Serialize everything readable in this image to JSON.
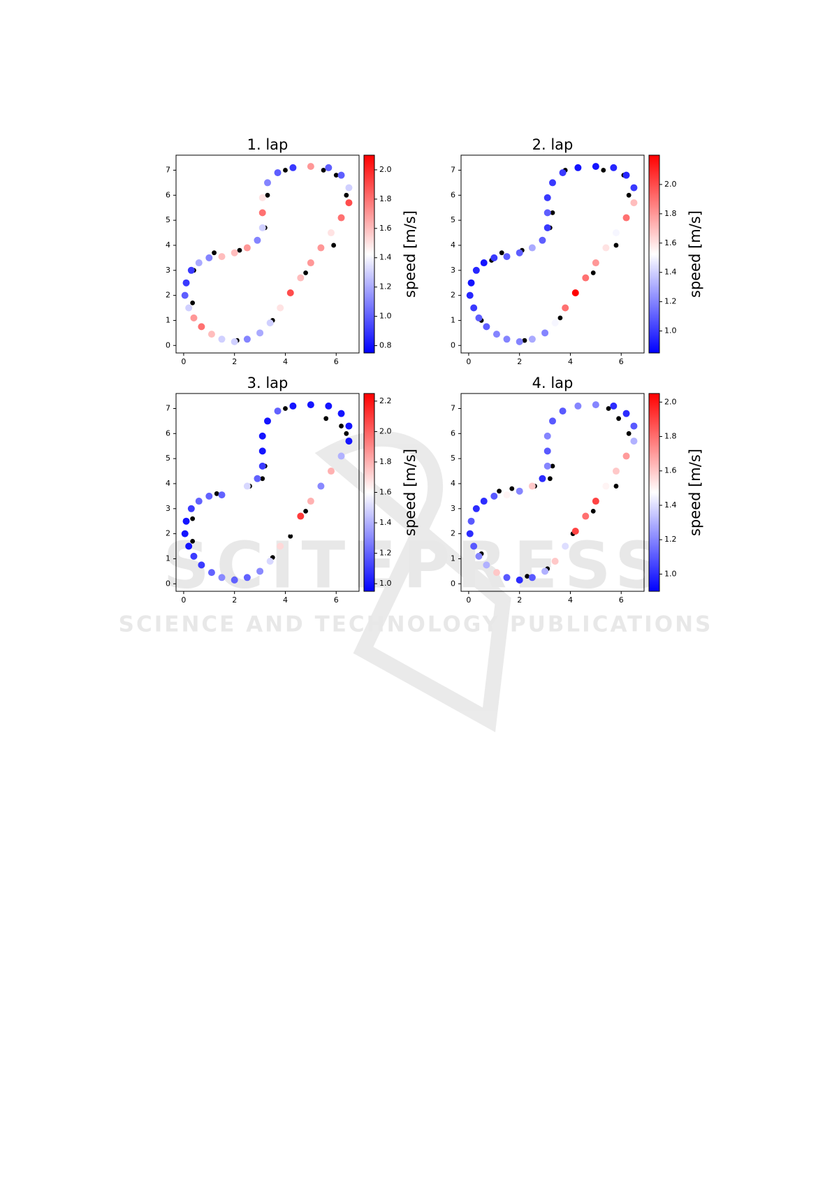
{
  "chart_data": [
    {
      "type": "scatter",
      "title": "1. lap",
      "xlim": [
        -0.3,
        6.9
      ],
      "ylim": [
        -0.3,
        7.6
      ],
      "xticks": [
        0,
        2,
        4,
        6
      ],
      "yticks": [
        0,
        1,
        2,
        3,
        4,
        5,
        6,
        7
      ],
      "colormap": "bwr",
      "clim": [
        0.75,
        2.1
      ],
      "colorbar_label": "speed [m/s]",
      "cticks": [
        0.8,
        {
          "value": 1.0,
          "label": "1.0"
        },
        1.2,
        1.4,
        1.6,
        1.8,
        {
          "value": 2.0,
          "label": "2.0"
        }
      ],
      "series": [
        {
          "color": "#000000",
          "x": [
            2.1,
            3.5,
            4.8,
            5.9,
            6.4,
            6.0,
            5.5,
            4.0,
            3.3,
            3.2,
            2.2,
            1.2,
            0.4,
            0.35
          ],
          "y": [
            0.2,
            1.0,
            2.9,
            4.0,
            6.0,
            6.8,
            7.0,
            7.0,
            6.0,
            4.7,
            3.8,
            3.7,
            3.0,
            1.7
          ]
        },
        {
          "x": [
            2.0,
            2.5,
            3.0,
            3.4,
            3.8,
            4.2,
            4.6,
            5.0,
            5.4,
            5.8,
            6.2,
            6.5,
            6.5,
            6.2,
            5.7,
            5.0,
            4.3,
            3.7,
            3.3,
            3.1,
            3.1,
            3.1,
            2.9,
            2.5,
            2.0,
            1.5,
            1.0,
            0.6,
            0.3,
            0.1,
            0.05,
            0.2,
            0.4,
            0.7,
            1.1,
            1.5
          ],
          "y": [
            0.15,
            0.25,
            0.5,
            0.9,
            1.5,
            2.1,
            2.7,
            3.3,
            3.9,
            4.5,
            5.1,
            5.7,
            6.3,
            6.8,
            7.1,
            7.15,
            7.1,
            6.9,
            6.5,
            5.9,
            5.3,
            4.7,
            4.2,
            3.9,
            3.7,
            3.55,
            3.5,
            3.3,
            3.0,
            2.5,
            2.0,
            1.5,
            1.1,
            0.75,
            0.45,
            0.25
          ],
          "values": [
            1.3,
            1.1,
            1.2,
            1.3,
            1.5,
            1.9,
            1.6,
            1.7,
            1.7,
            1.5,
            1.8,
            1.9,
            1.3,
            1.0,
            1.0,
            1.7,
            0.9,
            1.0,
            1.1,
            1.5,
            1.8,
            1.3,
            1.1,
            1.7,
            1.6,
            1.6,
            1.1,
            1.2,
            0.9,
            0.9,
            1.0,
            1.3,
            1.7,
            1.8,
            1.6,
            1.3
          ]
        }
      ]
    },
    {
      "type": "scatter",
      "title": "2. lap",
      "xlim": [
        -0.3,
        6.9
      ],
      "ylim": [
        -0.3,
        7.6
      ],
      "xticks": [
        0,
        2,
        4,
        6
      ],
      "yticks": [
        0,
        1,
        2,
        3,
        4,
        5,
        6,
        7
      ],
      "colormap": "bwr",
      "clim": [
        0.85,
        2.2
      ],
      "colorbar_label": "speed [m/s]",
      "cticks": [
        {
          "value": 1.0,
          "label": "1.0"
        },
        1.2,
        1.4,
        1.6,
        1.8,
        {
          "value": 2.0,
          "label": "2.0"
        }
      ],
      "series": [
        {
          "color": "#000000",
          "x": [
            2.2,
            3.6,
            4.9,
            5.8,
            6.3,
            6.1,
            5.3,
            3.8,
            3.3,
            3.2,
            2.1,
            1.3,
            0.9,
            0.5
          ],
          "y": [
            0.2,
            1.1,
            2.9,
            4.0,
            6.0,
            6.8,
            7.0,
            7.0,
            5.3,
            4.7,
            3.8,
            3.7,
            3.4,
            1.0
          ]
        },
        {
          "x": [
            2.0,
            2.5,
            3.0,
            3.4,
            3.8,
            4.2,
            4.6,
            5.0,
            5.4,
            5.8,
            6.2,
            6.5,
            6.5,
            6.2,
            5.7,
            5.0,
            4.3,
            3.7,
            3.3,
            3.1,
            3.1,
            3.1,
            2.9,
            2.5,
            2.0,
            1.5,
            1.0,
            0.6,
            0.3,
            0.1,
            0.05,
            0.2,
            0.4,
            0.7,
            1.1,
            1.5
          ],
          "y": [
            0.15,
            0.25,
            0.5,
            0.9,
            1.5,
            2.1,
            2.7,
            3.3,
            3.9,
            4.5,
            5.1,
            5.7,
            6.3,
            6.8,
            7.1,
            7.15,
            7.1,
            6.9,
            6.5,
            5.9,
            5.3,
            4.7,
            4.2,
            3.9,
            3.7,
            3.55,
            3.5,
            3.3,
            3.0,
            2.5,
            2.0,
            1.5,
            1.1,
            0.75,
            0.45,
            0.25
          ],
          "values": [
            1.2,
            1.3,
            1.2,
            1.5,
            1.9,
            2.2,
            1.9,
            1.8,
            1.6,
            1.5,
            1.9,
            1.7,
            1.0,
            0.95,
            0.95,
            0.9,
            0.9,
            1.0,
            1.0,
            1.0,
            1.1,
            1.0,
            1.1,
            1.3,
            1.1,
            1.1,
            1.0,
            0.9,
            0.95,
            0.9,
            0.95,
            1.0,
            1.1,
            1.1,
            1.2,
            1.2
          ]
        }
      ]
    },
    {
      "type": "scatter",
      "title": "3. lap",
      "xlim": [
        -0.3,
        6.9
      ],
      "ylim": [
        -0.3,
        7.6
      ],
      "xticks": [
        0,
        2,
        4,
        6
      ],
      "yticks": [
        0,
        1,
        2,
        3,
        4,
        5,
        6,
        7
      ],
      "colormap": "bwr",
      "clim": [
        0.95,
        2.25
      ],
      "colorbar_label": "speed [m/s]",
      "cticks": [
        {
          "value": 1.0,
          "label": "1.0"
        },
        1.2,
        1.4,
        1.6,
        1.8,
        {
          "value": 2.0,
          "label": "2.0"
        },
        2.2
      ],
      "series": [
        {
          "color": "#000000",
          "x": [
            2.0,
            3.5,
            4.2,
            4.8,
            6.4,
            6.2,
            5.6,
            4.0,
            3.2,
            3.1,
            2.6,
            1.3,
            0.35,
            0.35
          ],
          "y": [
            0.2,
            1.05,
            1.9,
            2.9,
            6.0,
            6.3,
            6.6,
            7.0,
            4.7,
            4.2,
            3.9,
            3.6,
            2.6,
            1.7
          ]
        },
        {
          "x": [
            2.0,
            2.5,
            3.0,
            3.4,
            3.8,
            4.2,
            4.6,
            5.0,
            5.4,
            5.8,
            6.2,
            6.5,
            6.5,
            6.2,
            5.7,
            5.0,
            4.3,
            3.7,
            3.3,
            3.1,
            3.1,
            3.1,
            2.9,
            2.5,
            2.0,
            1.5,
            1.0,
            0.6,
            0.3,
            0.1,
            0.05,
            0.2,
            0.4,
            0.7,
            1.1,
            1.5
          ],
          "y": [
            0.15,
            0.25,
            0.5,
            0.9,
            1.5,
            2.1,
            2.7,
            3.3,
            3.9,
            4.5,
            5.1,
            5.7,
            6.3,
            6.8,
            7.1,
            7.15,
            7.1,
            6.9,
            6.5,
            5.9,
            5.3,
            4.7,
            4.2,
            3.9,
            3.7,
            3.55,
            3.5,
            3.3,
            3.0,
            2.5,
            2.0,
            1.5,
            1.1,
            0.75,
            0.45,
            0.25
          ],
          "values": [
            1.2,
            1.2,
            1.3,
            1.5,
            1.7,
            1.6,
            2.1,
            1.8,
            1.3,
            1.8,
            1.4,
            1.0,
            1.0,
            1.0,
            1.0,
            1.0,
            1.0,
            1.2,
            1.0,
            1.0,
            1.0,
            1.1,
            1.2,
            1.5,
            1.6,
            1.2,
            1.2,
            1.2,
            1.1,
            1.0,
            1.0,
            1.0,
            1.1,
            1.1,
            1.2,
            1.3
          ]
        }
      ]
    },
    {
      "type": "scatter",
      "title": "4. lap",
      "xlim": [
        -0.3,
        6.9
      ],
      "ylim": [
        -0.3,
        7.6
      ],
      "xticks": [
        0,
        2,
        4,
        6
      ],
      "yticks": [
        0,
        1,
        2,
        3,
        4,
        5,
        6,
        7
      ],
      "colormap": "bwr",
      "clim": [
        0.9,
        2.05
      ],
      "colorbar_label": "speed [m/s]",
      "cticks": [
        {
          "value": 1.0,
          "label": "1.0"
        },
        1.2,
        1.4,
        1.6,
        1.8,
        {
          "value": 2.0,
          "label": "2.0"
        }
      ],
      "series": [
        {
          "color": "#000000",
          "x": [
            2.3,
            3.1,
            4.1,
            4.9,
            5.8,
            6.3,
            5.9,
            5.5,
            3.3,
            3.2,
            2.6,
            1.7,
            1.2,
            0.5
          ],
          "y": [
            0.3,
            0.6,
            2.0,
            2.9,
            3.9,
            6.0,
            6.6,
            7.0,
            4.7,
            4.2,
            3.9,
            3.8,
            3.7,
            1.2
          ]
        },
        {
          "x": [
            2.0,
            2.5,
            3.0,
            3.4,
            3.8,
            4.2,
            4.6,
            5.0,
            5.4,
            5.8,
            6.2,
            6.5,
            6.5,
            6.2,
            5.7,
            5.0,
            4.3,
            3.7,
            3.3,
            3.1,
            3.1,
            3.1,
            2.9,
            2.5,
            2.0,
            1.5,
            1.0,
            0.6,
            0.3,
            0.1,
            0.05,
            0.2,
            0.4,
            0.7,
            1.1,
            1.5
          ],
          "y": [
            0.15,
            0.25,
            0.5,
            0.9,
            1.5,
            2.1,
            2.7,
            3.3,
            3.9,
            4.5,
            5.1,
            5.7,
            6.3,
            6.8,
            7.1,
            7.15,
            7.1,
            6.9,
            6.5,
            5.9,
            5.3,
            4.7,
            4.2,
            3.9,
            3.7,
            3.55,
            3.5,
            3.3,
            3.0,
            2.5,
            2.0,
            1.5,
            1.1,
            0.75,
            0.45,
            0.25
          ],
          "values": [
            1.0,
            1.1,
            1.3,
            1.6,
            1.4,
            1.9,
            1.8,
            1.9,
            1.5,
            1.6,
            1.7,
            1.3,
            1.1,
            1.0,
            1.0,
            1.2,
            1.2,
            1.1,
            1.1,
            1.2,
            1.1,
            1.2,
            1.0,
            1.6,
            1.2,
            1.5,
            1.1,
            1.0,
            1.0,
            1.1,
            1.0,
            1.1,
            1.2,
            1.3,
            1.6,
            1.1
          ]
        }
      ]
    }
  ],
  "watermark": {
    "title": "SCITEPRESS",
    "subtitle": "SCIENCE AND TECHNOLOGY PUBLICATIONS"
  }
}
